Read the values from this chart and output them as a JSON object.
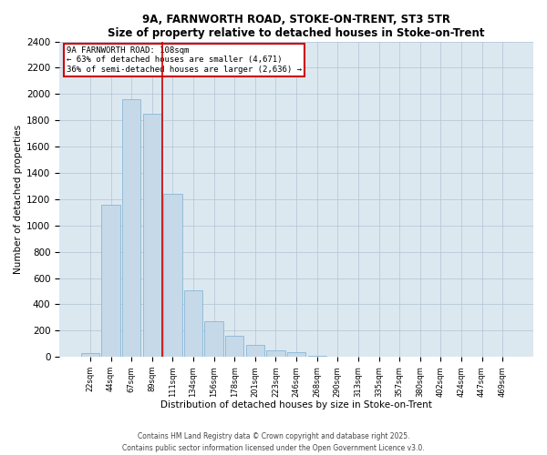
{
  "title": "9A, FARNWORTH ROAD, STOKE-ON-TRENT, ST3 5TR",
  "subtitle": "Size of property relative to detached houses in Stoke-on-Trent",
  "xlabel": "Distribution of detached houses by size in Stoke-on-Trent",
  "ylabel": "Number of detached properties",
  "bins": [
    "22sqm",
    "44sqm",
    "67sqm",
    "89sqm",
    "111sqm",
    "134sqm",
    "156sqm",
    "178sqm",
    "201sqm",
    "223sqm",
    "246sqm",
    "268sqm",
    "290sqm",
    "313sqm",
    "335sqm",
    "357sqm",
    "380sqm",
    "402sqm",
    "424sqm",
    "447sqm",
    "469sqm"
  ],
  "values": [
    30,
    1160,
    1960,
    1850,
    1240,
    510,
    270,
    160,
    95,
    50,
    35,
    10,
    5,
    3,
    2,
    1,
    1,
    0,
    0,
    0,
    0
  ],
  "bar_color": "#c6d9e8",
  "bar_edge_color": "#7bafd4",
  "annotation_title": "9A FARNWORTH ROAD: 108sqm",
  "annotation_line1": "← 63% of detached houses are smaller (4,671)",
  "annotation_line2": "36% of semi-detached houses are larger (2,636) →",
  "footer1": "Contains HM Land Registry data © Crown copyright and database right 2025.",
  "footer2": "Contains public sector information licensed under the Open Government Licence v3.0.",
  "bg_color": "#ffffff",
  "plot_bg_color": "#dce8f0",
  "grid_color": "#b0c4d4",
  "ylim_max": 2400,
  "yticks": [
    0,
    200,
    400,
    600,
    800,
    1000,
    1200,
    1400,
    1600,
    1800,
    2000,
    2200,
    2400
  ],
  "red_line_color": "#cc0000",
  "red_line_bin_index": 4
}
